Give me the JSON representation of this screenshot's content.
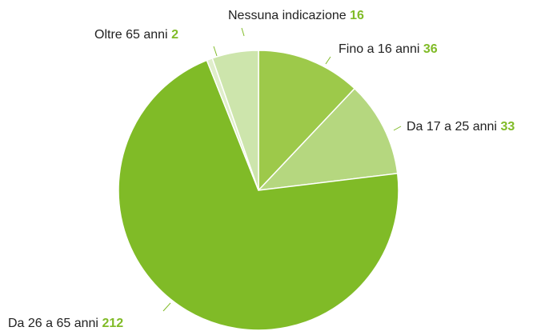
{
  "chart_data": {
    "type": "pie",
    "categories": [
      "Fino a 16 anni",
      "Da 17 a 25 anni",
      "Da 26 a 65 anni",
      "Oltre 65 anni",
      "Nessuna indicazione"
    ],
    "values": [
      36,
      33,
      212,
      2,
      16
    ],
    "colors": [
      "#9dc94a",
      "#b5d77f",
      "#80bb27",
      "#e0eecb",
      "#cde5ac"
    ],
    "value_color": "#80bb27"
  }
}
